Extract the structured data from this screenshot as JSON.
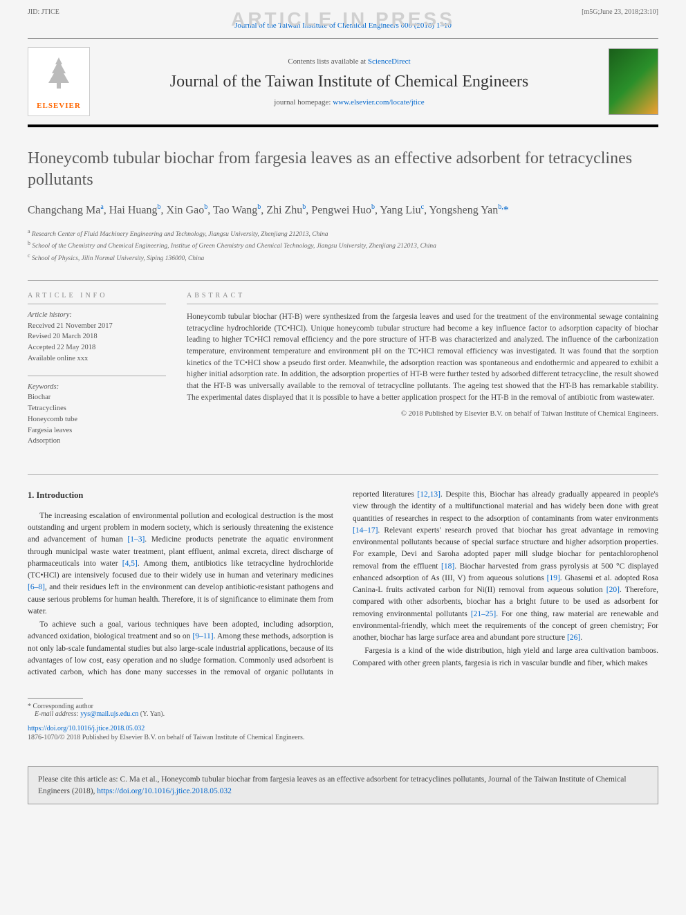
{
  "meta": {
    "jid": "JID: JTICE",
    "stamp": "[m5G;June 23, 2018;23:10]",
    "watermark": "ARTICLE IN PRESS",
    "journal_ref_text": "Journal of the Taiwan Institute of Chemical Engineers 000 (2018) 1–10"
  },
  "masthead": {
    "contents_prefix": "Contents lists available at ",
    "contents_link": "ScienceDirect",
    "journal_name": "Journal of the Taiwan Institute of Chemical Engineers",
    "homepage_prefix": "journal homepage: ",
    "homepage_link": "www.elsevier.com/locate/jtice",
    "elsevier_brand": "ELSEVIER"
  },
  "article": {
    "title": "Honeycomb tubular biochar from fargesia leaves as an effective adsorbent for tetracyclines pollutants",
    "authors_html": "Changchang Ma<sup>a</sup>, Hai Huang<sup>b</sup>, Xin Gao<sup>b</sup>, Tao Wang<sup>b</sup>, Zhi Zhu<sup>b</sup>, Pengwei Huo<sup>b</sup>, Yang Liu<sup>c</sup>, Yongsheng Yan<sup>b,</sup><span class='corr'>*</span>",
    "affiliations": [
      "a Research Center of Fluid Machinery Engineering and Technology, Jiangsu University, Zhenjiang 212013, China",
      "b School of the Chemistry and Chemical Engineering, Institue of Green Chemistry and Chemical Technology, Jiangsu University, Zhenjiang 212013, China",
      "c School of Physics, Jilin Normal University, Siping 136000, China"
    ]
  },
  "info": {
    "article_info_label": "article info",
    "abstract_label": "abstract",
    "history_heading": "Article history:",
    "history": [
      "Received 21 November 2017",
      "Revised 20 March 2018",
      "Accepted 22 May 2018",
      "Available online xxx"
    ],
    "keywords_heading": "Keywords:",
    "keywords": [
      "Biochar",
      "Tetracyclines",
      "Honeycomb tube",
      "Fargesia leaves",
      "Adsorption"
    ],
    "abstract": "Honeycomb tubular biochar (HT-B) were synthesized from the fargesia leaves and used for the treatment of the environmental sewage containing tetracycline hydrochloride (TC•HCl). Unique honeycomb tubular structure had become a key influence factor to adsorption capacity of biochar leading to higher TC•HCl removal efficiency and the pore structure of HT-B was characterized and analyzed. The influence of the carbonization temperature, environment temperature and environment pH on the TC•HCl removal efficiency was investigated. It was found that the sorption kinetics of the TC•HCl show a pseudo first order. Meanwhile, the adsorption reaction was spontaneous and endothermic and appeared to exhibit a higher initial adsorption rate. In addition, the adsorption properties of HT-B were further tested by adsorbed different tetracycline, the result showed that the HT-B was universally available to the removal of tetracycline pollutants. The ageing test showed that the HT-B has remarkable stability. The experimental dates displayed that it is possible to have a better application prospect for the HT-B in the removal of antibiotic from wastewater.",
    "copyright": "© 2018 Published by Elsevier B.V. on behalf of Taiwan Institute of Chemical Engineers."
  },
  "body": {
    "section_heading": "1. Introduction",
    "p1_a": "The increasing escalation of environmental pollution and ecological destruction is the most outstanding and urgent problem in modern society, which is seriously threatening the existence and advancement of human ",
    "p1_ref1": "[1–3]",
    "p1_b": ". Medicine products penetrate the aquatic environment through municipal waste water treatment, plant effluent, animal excreta, direct discharge of pharmaceuticals into water ",
    "p1_ref2": "[4,5]",
    "p1_c": ". Among them, antibiotics like tetracycline hydrochloride (TC•HCl) are intensively focused due to their widely use in human and veterinary medicines ",
    "p1_ref3": "[6–8]",
    "p1_d": ", and their residues left in the environment can develop antibiotic-resistant pathogens and cause serious problems for human health. Therefore, it is of significance to eliminate them from water.",
    "p2_a": "To achieve such a goal, various techniques have been adopted, including adsorption, advanced oxidation, biological treatment and so on ",
    "p2_ref1": "[9–11]",
    "p2_b": ". Among these methods, adsorption is not only lab-scale fundamental studies but also large-scale industrial applications, because of its advantages of low cost, easy operation and no sludge formation. Commonly used adsorbent is activated carbon, which has done many successes in the removal of organic pollutants in reported literatures ",
    "p2_ref2": "[12,13]",
    "p2_c": ". Despite this, Biochar has already gradually appeared in people's view through the identity of a multifunctional material and has widely been done with great quantities of researches in respect to the adsorption of contaminants from water environments ",
    "p2_ref3": "[14–17]",
    "p2_d": ". Relevant experts' research proved that biochar has great advantage in removing environmental pollutants because of special surface structure and higher adsorption properties. For example, Devi and Saroha adopted paper mill sludge biochar for pentachlorophenol removal from the effluent ",
    "p2_ref4": "[18]",
    "p2_e": ". Biochar harvested from grass pyrolysis at 500 °C displayed enhanced adsorption of As (III, V) from aqueous solutions ",
    "p2_ref5": "[19]",
    "p2_f": ". Ghasemi et al. adopted Rosa Canina-L fruits activated carbon for Ni(II) removal from aqueous solution ",
    "p2_ref6": "[20]",
    "p2_g": ". Therefore, compared with other adsorbents, biochar has a bright future to be used as adsorbent for removing environmental pollutants ",
    "p2_ref7": "[21–25]",
    "p2_h": ". For one thing, raw material are renewable and environmental-friendly, which meet the requirements of the concept of green chemistry; For another, biochar has large surface area and abundant pore structure ",
    "p2_ref8": "[26]",
    "p2_i": ".",
    "p3": "Fargesia is a kind of the wide distribution, high yield and large area cultivation bamboos. Compared with other green plants, fargesia is rich in vascular bundle and fiber, which makes"
  },
  "footer": {
    "corr_label": "* Corresponding author",
    "email_label": "E-mail address: ",
    "email": "yys@mail.ujs.edu.cn",
    "email_suffix": " (Y. Yan).",
    "doi": "https://doi.org/10.1016/j.jtice.2018.05.032",
    "issn": "1876-1070/© 2018 Published by Elsevier B.V. on behalf of Taiwan Institute of Chemical Engineers."
  },
  "citebox": {
    "prefix": "Please cite this article as: C. Ma et al., Honeycomb tubular biochar from fargesia leaves as an effective adsorbent for tetracyclines pollutants, Journal of the Taiwan Institute of Chemical Engineers (2018), ",
    "link": "https://doi.org/10.1016/j.jtice.2018.05.032"
  },
  "colors": {
    "link": "#0066cc",
    "text": "#333333",
    "muted": "#666666",
    "elsevier_orange": "#ff6600",
    "page_bg": "#f5f5f5",
    "watermark": "#d0d0d0"
  }
}
